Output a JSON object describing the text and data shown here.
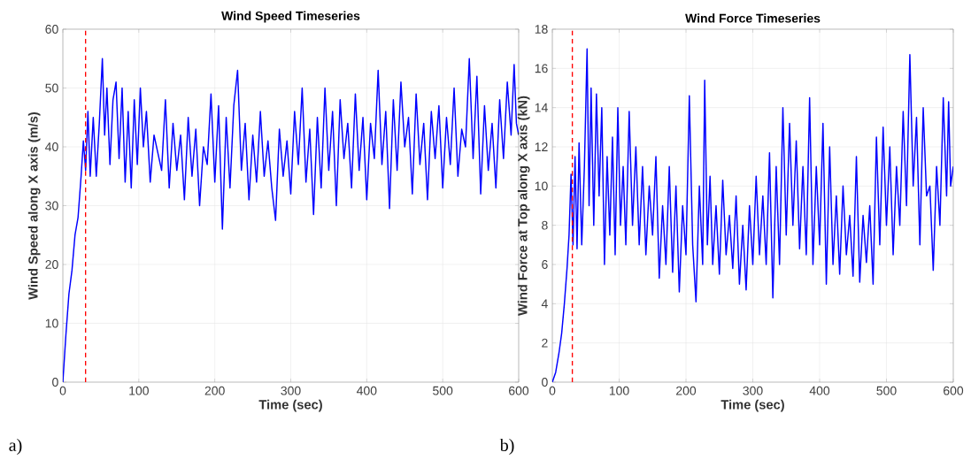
{
  "chart_data": [
    {
      "type": "line",
      "title": "Wind Speed Timeseries",
      "xlabel": "Time (sec)",
      "ylabel": "Wind Speed along X axis (m/s)",
      "annotations": [
        "a)"
      ],
      "x": [
        0,
        4,
        8,
        12,
        16,
        20,
        24,
        27,
        30,
        33,
        36,
        40,
        44,
        48,
        52,
        55,
        58,
        62,
        66,
        70,
        74,
        78,
        82,
        86,
        90,
        94,
        98,
        102,
        106,
        110,
        115,
        120,
        125,
        130,
        135,
        140,
        145,
        150,
        155,
        160,
        165,
        170,
        175,
        180,
        185,
        190,
        195,
        200,
        205,
        210,
        215,
        220,
        225,
        230,
        235,
        240,
        245,
        250,
        255,
        260,
        265,
        270,
        275,
        280,
        285,
        290,
        295,
        300,
        305,
        310,
        315,
        320,
        325,
        330,
        335,
        340,
        345,
        350,
        355,
        360,
        365,
        370,
        375,
        380,
        385,
        390,
        395,
        400,
        405,
        410,
        415,
        420,
        425,
        430,
        435,
        440,
        445,
        450,
        455,
        460,
        465,
        470,
        475,
        480,
        485,
        490,
        495,
        500,
        505,
        510,
        515,
        520,
        525,
        530,
        535,
        540,
        545,
        550,
        555,
        560,
        565,
        570,
        575,
        580,
        585,
        590,
        594,
        597,
        600
      ],
      "series": [
        {
          "color": "#0000ff",
          "values": [
            0,
            8,
            15,
            19,
            25,
            28,
            35,
            41,
            36,
            46,
            35,
            45,
            35,
            44,
            55,
            42,
            50,
            37,
            48,
            51,
            38,
            50,
            34,
            46,
            33,
            48,
            37,
            50,
            40,
            46,
            34,
            42,
            39,
            36,
            48,
            33,
            44,
            36,
            42,
            31,
            45,
            35,
            43,
            30,
            40,
            37,
            49,
            34,
            47,
            26,
            45,
            33,
            47,
            53,
            36,
            44,
            31,
            42,
            34,
            46,
            35,
            41,
            33,
            27.5,
            43,
            35,
            41,
            32,
            46,
            37,
            50,
            34,
            43,
            28.5,
            45,
            33,
            50,
            36,
            46,
            30,
            48,
            38,
            44,
            33,
            49,
            36,
            45,
            31,
            44,
            38,
            53,
            37,
            46,
            29.5,
            48,
            36,
            51,
            40,
            45,
            32,
            49,
            37,
            44,
            31,
            46,
            38,
            47,
            33,
            45,
            37,
            50,
            35,
            43,
            40,
            55,
            38,
            52,
            32,
            47,
            36,
            44,
            33,
            48,
            38,
            51,
            42,
            54,
            44,
            42
          ]
        }
      ],
      "xlim": [
        0,
        600
      ],
      "ylim": [
        0,
        60
      ],
      "xticks": [
        0,
        100,
        200,
        300,
        400,
        500,
        600
      ],
      "yticks": [
        0,
        10,
        20,
        30,
        40,
        50,
        60
      ],
      "grid": true,
      "ref_lines": [
        {
          "axis": "x",
          "value": 30,
          "color": "#ff0000",
          "line_style": "dashed"
        }
      ]
    },
    {
      "type": "line",
      "title": "Wind Force Timeseries",
      "xlabel": "Time (sec)",
      "ylabel": "Wind Force at Top along X axis (kN)",
      "annotations": [
        "b)"
      ],
      "x": [
        0,
        5,
        10,
        14,
        18,
        22,
        25,
        28,
        31,
        34,
        37,
        40,
        44,
        48,
        52,
        55,
        58,
        62,
        66,
        70,
        74,
        78,
        82,
        86,
        90,
        94,
        98,
        102,
        106,
        110,
        115,
        120,
        125,
        130,
        135,
        140,
        145,
        150,
        155,
        160,
        165,
        170,
        175,
        180,
        185,
        190,
        195,
        200,
        205,
        210,
        215,
        220,
        225,
        228,
        232,
        236,
        240,
        245,
        250,
        255,
        260,
        265,
        270,
        275,
        280,
        285,
        290,
        295,
        300,
        305,
        310,
        315,
        320,
        325,
        330,
        335,
        340,
        345,
        350,
        355,
        360,
        365,
        370,
        375,
        380,
        385,
        390,
        395,
        400,
        405,
        410,
        415,
        420,
        425,
        430,
        435,
        440,
        445,
        450,
        455,
        460,
        465,
        470,
        475,
        480,
        485,
        490,
        495,
        500,
        505,
        510,
        515,
        520,
        525,
        530,
        535,
        540,
        545,
        550,
        555,
        560,
        565,
        570,
        575,
        580,
        585,
        590,
        593,
        596,
        600
      ],
      "series": [
        {
          "color": "#0000ff",
          "values": [
            0,
            0.5,
            1.5,
            2.5,
            4,
            5.8,
            7.5,
            10.6,
            7,
            11.5,
            6.8,
            12.2,
            7,
            11,
            17,
            9,
            15,
            8,
            14.7,
            9.5,
            14,
            6,
            11.5,
            7.5,
            12.5,
            6.5,
            14,
            8,
            11,
            7,
            13.8,
            8,
            12,
            7,
            11,
            6.5,
            10,
            7.5,
            11.5,
            5.3,
            9,
            6,
            11,
            5.6,
            10,
            4.6,
            9,
            6.5,
            14.6,
            7,
            4.1,
            10,
            6,
            15.4,
            7,
            10.5,
            6,
            9,
            5.5,
            10.3,
            6.5,
            8.5,
            5.8,
            9.5,
            5,
            8,
            4.7,
            9,
            6,
            10.5,
            6.5,
            9.5,
            6,
            11.7,
            4.3,
            11,
            6,
            14,
            7.5,
            13.2,
            8,
            12.3,
            6.8,
            11,
            6.5,
            14.5,
            6,
            11,
            7,
            13.2,
            5,
            12,
            6,
            9.5,
            5.5,
            10,
            6.5,
            8.5,
            5.4,
            11.5,
            5.1,
            8.5,
            6.1,
            9,
            5,
            12.5,
            7,
            13,
            8,
            12,
            6.5,
            11,
            8,
            13.8,
            9,
            16.7,
            10,
            13.5,
            7,
            14,
            9.5,
            10,
            5.7,
            11,
            8,
            14.5,
            9.5,
            14.3,
            10,
            11
          ]
        }
      ],
      "xlim": [
        0,
        600
      ],
      "ylim": [
        0,
        18
      ],
      "xticks": [
        0,
        100,
        200,
        300,
        400,
        500,
        600
      ],
      "yticks": [
        0,
        2,
        4,
        6,
        8,
        10,
        12,
        14,
        16,
        18
      ],
      "grid": true,
      "ref_lines": [
        {
          "axis": "x",
          "value": 30,
          "color": "#ff0000",
          "line_style": "dashed"
        }
      ]
    }
  ]
}
